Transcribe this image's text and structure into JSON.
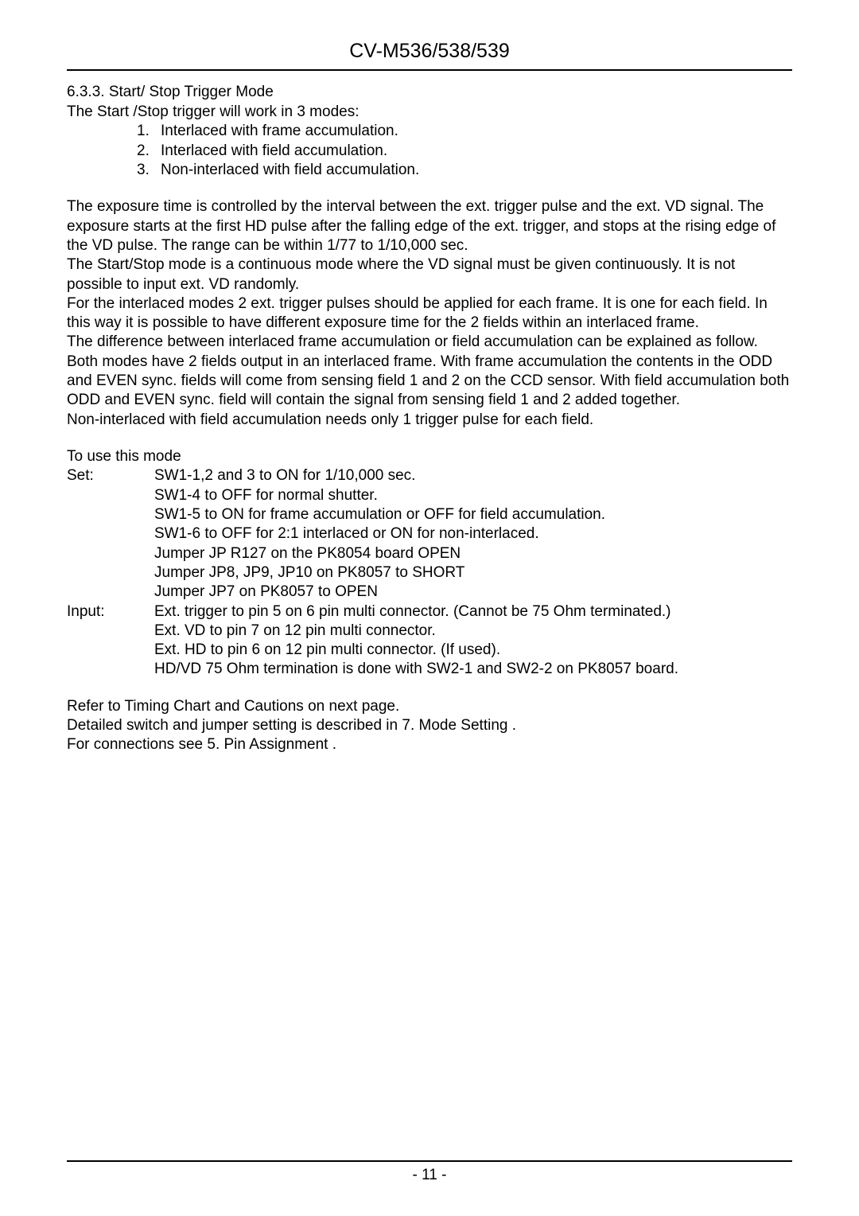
{
  "header": {
    "title": "CV-M536/538/539"
  },
  "section": {
    "number": "6.3.3. Start/ Stop Trigger Mode",
    "intro": "The Start /Stop trigger will work in 3 modes:",
    "modes": {
      "n1": "1.",
      "t1": "Interlaced with frame accumulation.",
      "n2": "2.",
      "t2": "Interlaced with field accumulation.",
      "n3": "3.",
      "t3": "Non-interlaced with field accumulation."
    }
  },
  "para1": {
    "l1": "The exposure time is controlled by the interval between the ext. trigger pulse and the ext. VD signal. The exposure starts at the first HD pulse after the falling edge of the ext. trigger, and stops at the rising edge of the VD pulse. The range can be within 1/77 to 1/10,000 sec.",
    "l2": "The Start/Stop mode is a continuous mode where the VD signal must be given continuously. It is not possible to input ext. VD randomly.",
    "l3": "For the interlaced modes 2 ext. trigger pulses should be applied for each frame. It is one for each field. In this way it is possible to have different exposure time for the 2 fields within an interlaced frame.",
    "l4": "The difference between interlaced frame accumulation or field accumulation can be explained as follow. Both modes have 2 fields output in an interlaced frame. With frame accumulation the contents in the ODD and EVEN sync. fields will come from sensing field 1 and 2 on the CCD sensor. With field accumulation both ODD and EVEN sync. field will contain the signal from sensing field 1 and 2 added together.",
    "l5": "Non-interlaced with field accumulation needs only 1 trigger pulse for each field."
  },
  "usage": {
    "heading": "To use this mode",
    "set_label": "Set:",
    "set": {
      "l1": "SW1-1,2 and 3 to ON for 1/10,000 sec.",
      "l2": "SW1-4 to OFF for normal shutter.",
      "l3": "SW1-5 to ON for frame accumulation or OFF for field accumulation.",
      "l4": "SW1-6 to OFF for 2:1 interlaced or ON for non-interlaced.",
      "l5": "Jumper JP R127 on the PK8054 board OPEN",
      "l6": "Jumper JP8, JP9, JP10 on PK8057 to SHORT",
      "l7": "Jumper JP7 on PK8057 to OPEN"
    },
    "input_label": "Input:",
    "input": {
      "l1": "Ext. trigger to pin 5 on 6 pin multi connector. (Cannot be 75 Ohm terminated.)",
      "l2": "Ext. VD to pin 7 on 12 pin multi connector.",
      "l3": "Ext. HD to pin 6 on 12 pin multi connector. (If used).",
      "l4": "HD/VD 75 Ohm termination is done with SW2-1 and SW2-2 on PK8057 board."
    }
  },
  "closing": {
    "l1": "Refer to Timing Chart and Cautions on next page.",
    "l2": "Detailed switch and jumper setting is described in  7. Mode Setting .",
    "l3": "For connections see  5. Pin Assignment ."
  },
  "footer": {
    "page": "- 11 -"
  }
}
